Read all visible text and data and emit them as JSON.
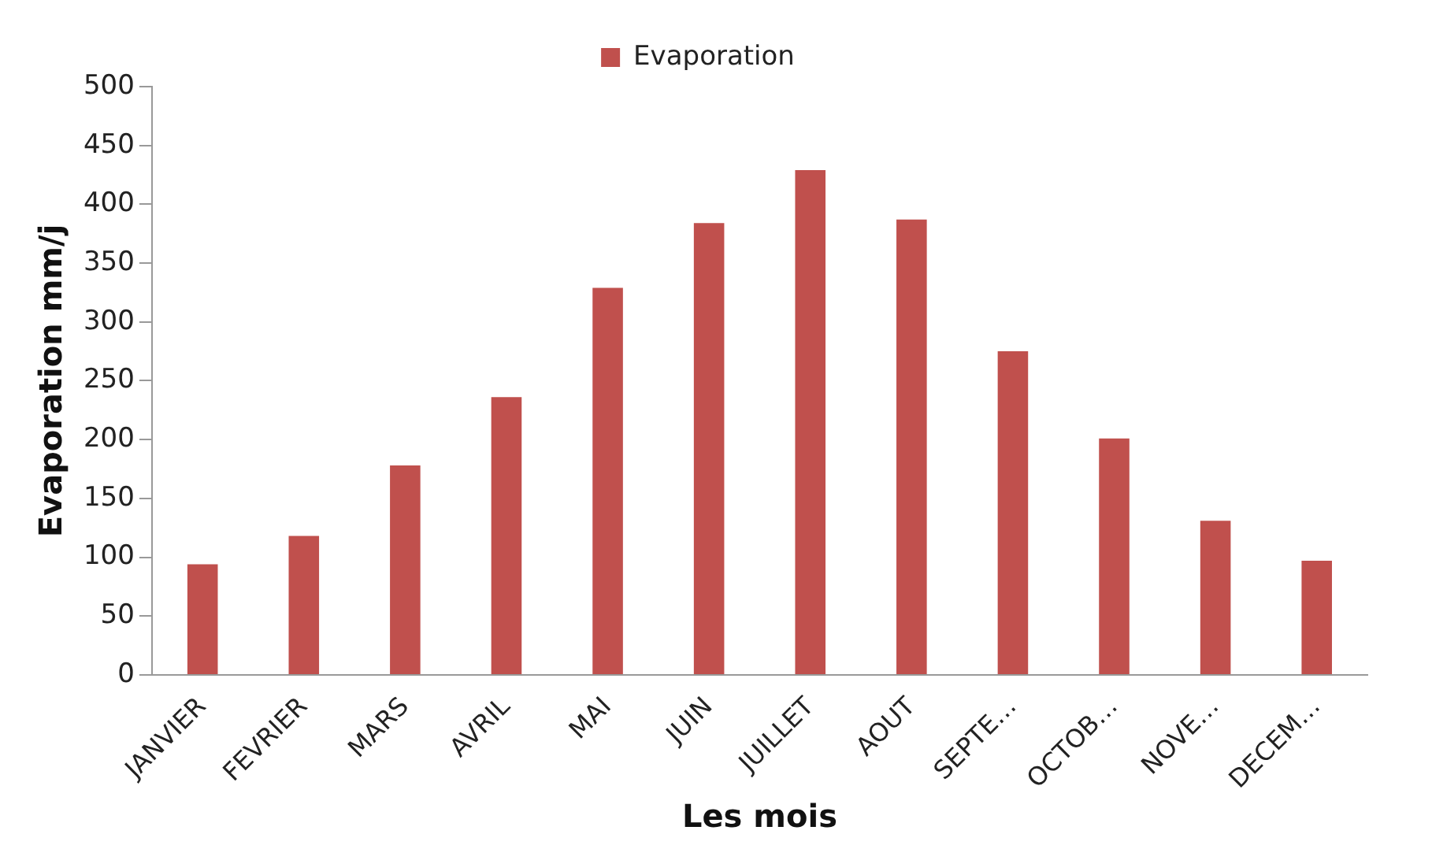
{
  "chart_data": {
    "type": "bar",
    "xlabel": "Les mois",
    "ylabel": "Evaporation mm/j",
    "categories": [
      "JANVIER",
      "FEVRIER",
      "MARS",
      "AVRIL",
      "MAI",
      "JUIN",
      "JUILLET",
      "AOUT",
      "SEPTE…",
      "OCTOB…",
      "NOVE…",
      "DECEM…"
    ],
    "series": [
      {
        "name": "Evaporation",
        "color": "#c0504d",
        "values": [
          94,
          118,
          178,
          236,
          329,
          384,
          429,
          387,
          275,
          201,
          131,
          97
        ]
      }
    ],
    "ylim": [
      0,
      500
    ],
    "yticks": [
      0,
      50,
      100,
      150,
      200,
      250,
      300,
      350,
      400,
      450,
      500
    ],
    "grid": false,
    "legend": "top"
  }
}
